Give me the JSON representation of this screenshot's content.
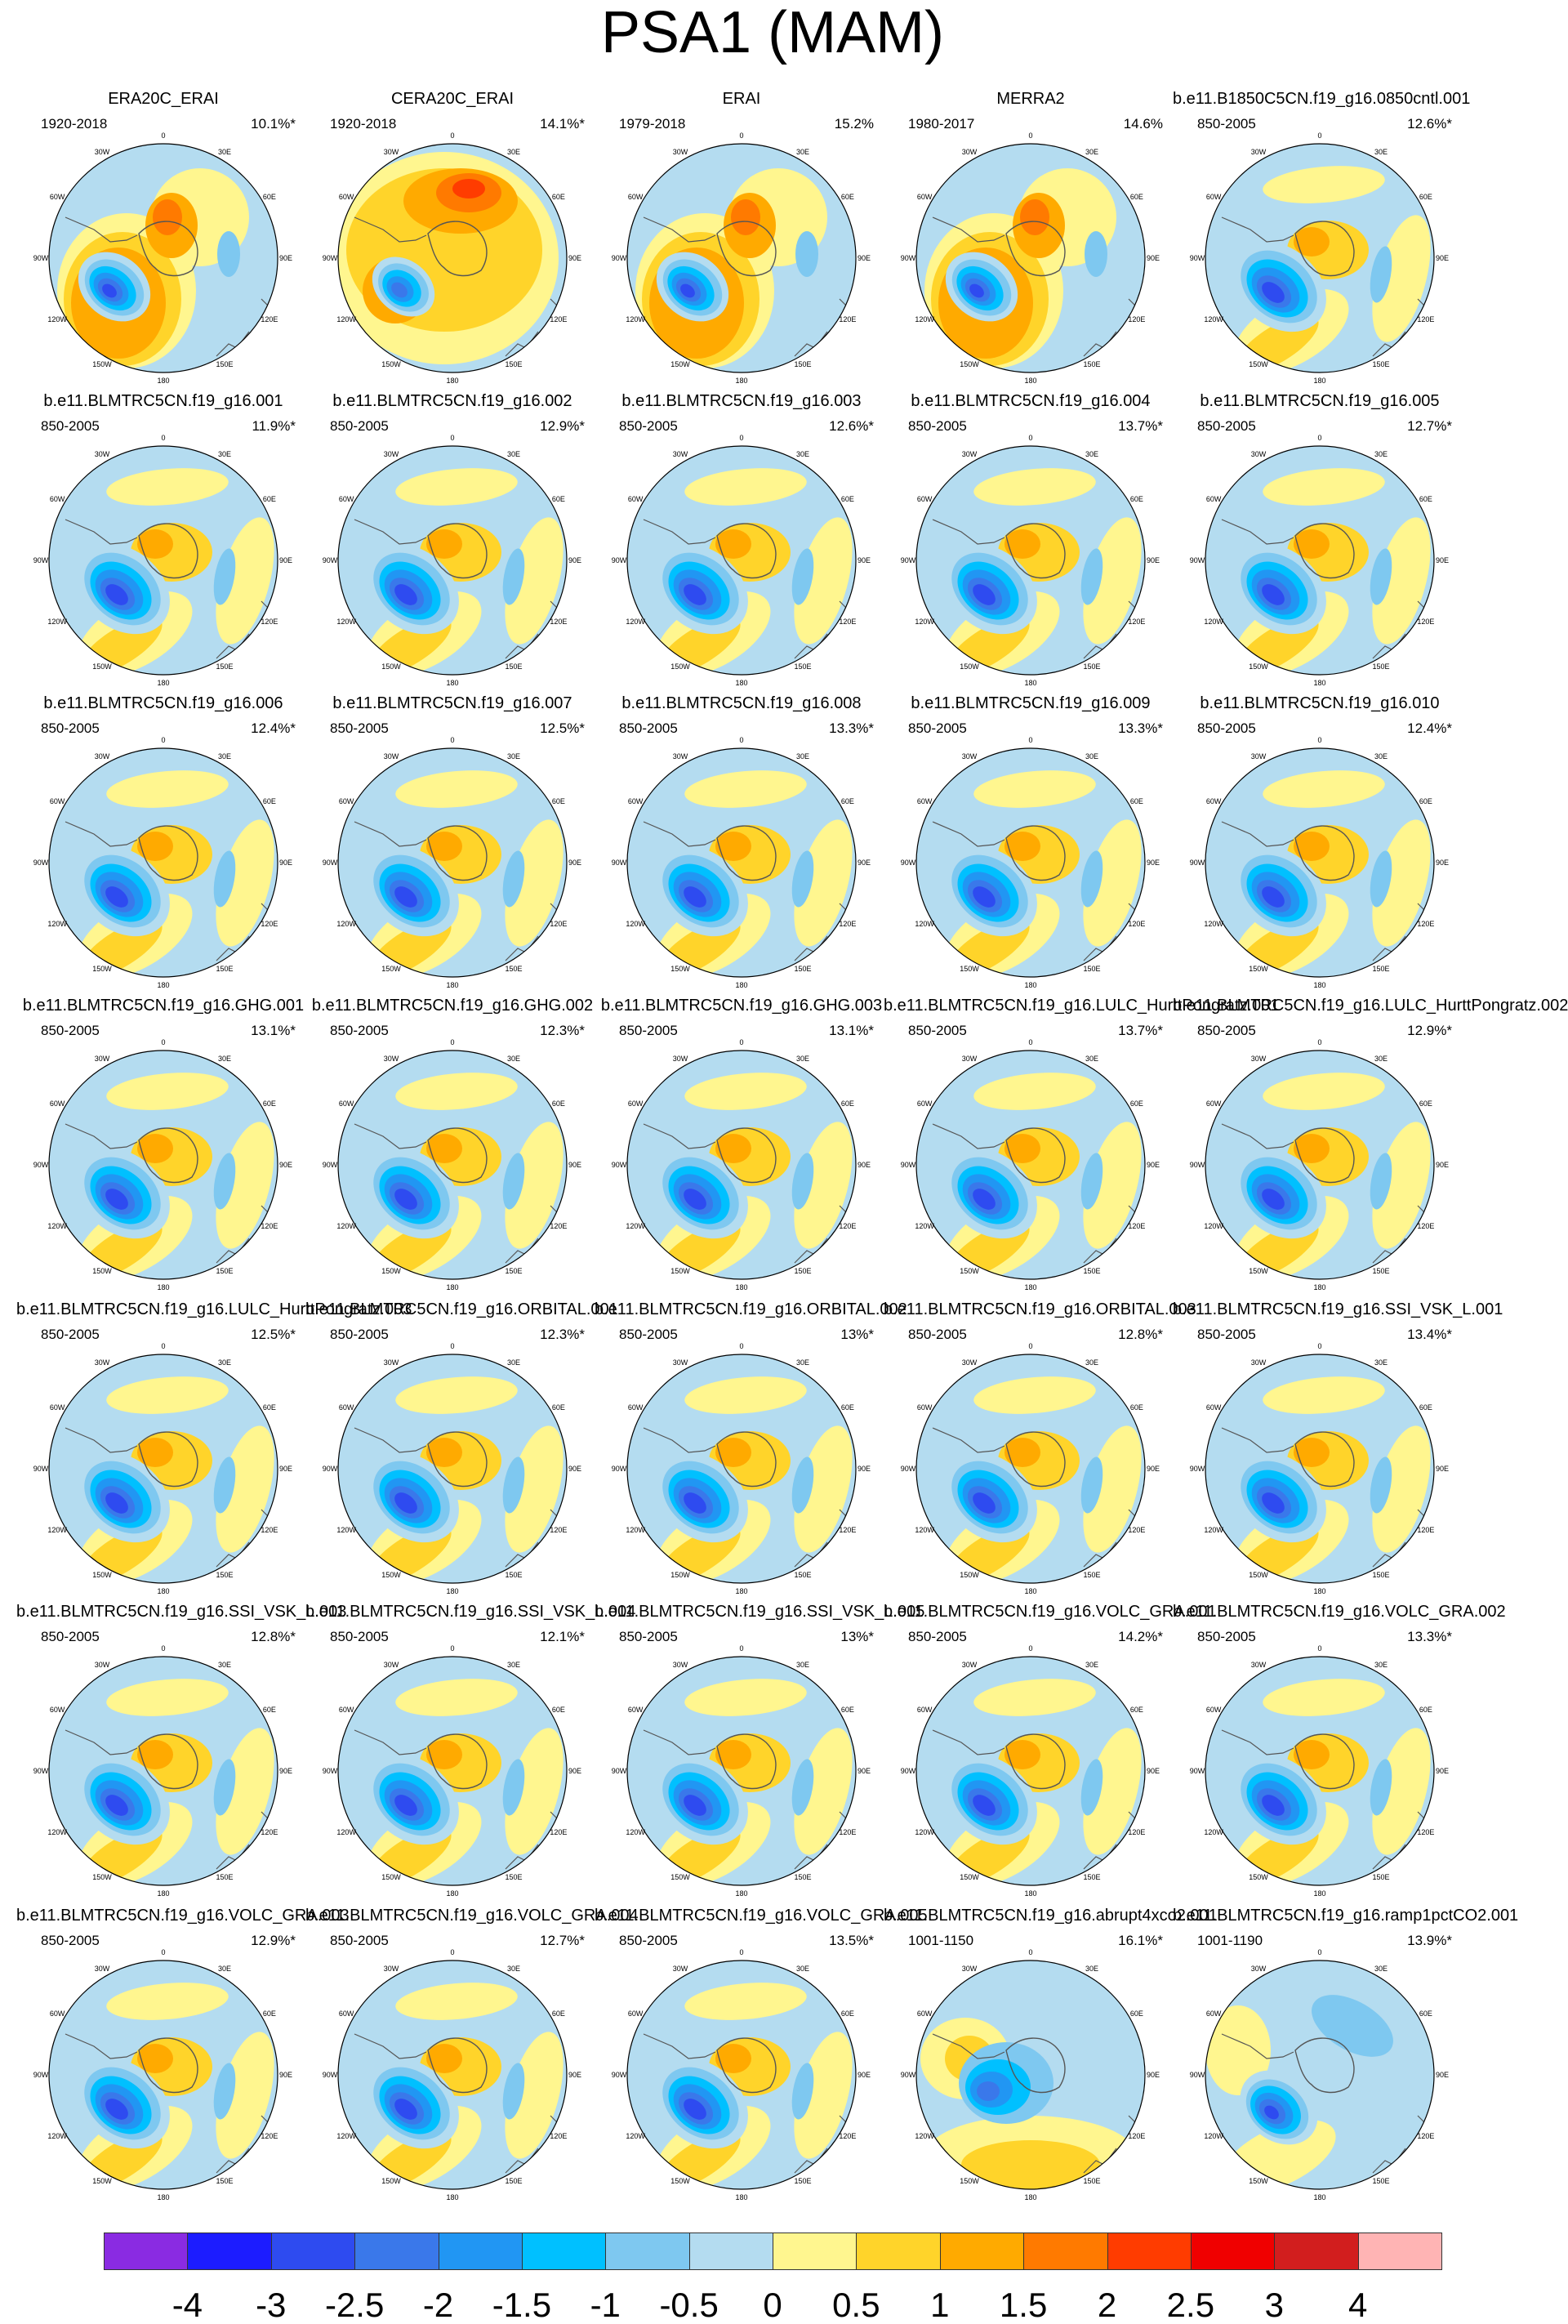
{
  "title": "PSA1 (MAM)",
  "lon_labels": [
    "0",
    "30E",
    "60E",
    "90E",
    "120E",
    "150E",
    "180",
    "150W",
    "120W",
    "90W",
    "60W",
    "30W"
  ],
  "panels": [
    {
      "title": "ERA20C_ERAI",
      "period": "1920-2018",
      "pct": "10.1%*",
      "style": "obs"
    },
    {
      "title": "CERA20C_ERAI",
      "period": "1920-2018",
      "pct": "14.1%*",
      "style": "cera"
    },
    {
      "title": "ERAI",
      "period": "1979-2018",
      "pct": "15.2%",
      "style": "obs"
    },
    {
      "title": "MERRA2",
      "period": "1980-2017",
      "pct": "14.6%",
      "style": "obs"
    },
    {
      "title": "b.e11.B1850C5CN.f19_g16.0850cntl.001",
      "period": "850-2005",
      "pct": "12.6%*",
      "style": "model"
    },
    {
      "title": "b.e11.BLMTRC5CN.f19_g16.001",
      "period": "850-2005",
      "pct": "11.9%*",
      "style": "model"
    },
    {
      "title": "b.e11.BLMTRC5CN.f19_g16.002",
      "period": "850-2005",
      "pct": "12.9%*",
      "style": "model"
    },
    {
      "title": "b.e11.BLMTRC5CN.f19_g16.003",
      "period": "850-2005",
      "pct": "12.6%*",
      "style": "model"
    },
    {
      "title": "b.e11.BLMTRC5CN.f19_g16.004",
      "period": "850-2005",
      "pct": "13.7%*",
      "style": "model"
    },
    {
      "title": "b.e11.BLMTRC5CN.f19_g16.005",
      "period": "850-2005",
      "pct": "12.7%*",
      "style": "model"
    },
    {
      "title": "b.e11.BLMTRC5CN.f19_g16.006",
      "period": "850-2005",
      "pct": "12.4%*",
      "style": "model"
    },
    {
      "title": "b.e11.BLMTRC5CN.f19_g16.007",
      "period": "850-2005",
      "pct": "12.5%*",
      "style": "model"
    },
    {
      "title": "b.e11.BLMTRC5CN.f19_g16.008",
      "period": "850-2005",
      "pct": "13.3%*",
      "style": "model"
    },
    {
      "title": "b.e11.BLMTRC5CN.f19_g16.009",
      "period": "850-2005",
      "pct": "13.3%*",
      "style": "model"
    },
    {
      "title": "b.e11.BLMTRC5CN.f19_g16.010",
      "period": "850-2005",
      "pct": "12.4%*",
      "style": "model"
    },
    {
      "title": "b.e11.BLMTRC5CN.f19_g16.GHG.001",
      "period": "850-2005",
      "pct": "13.1%*",
      "style": "model"
    },
    {
      "title": "b.e11.BLMTRC5CN.f19_g16.GHG.002",
      "period": "850-2005",
      "pct": "12.3%*",
      "style": "model"
    },
    {
      "title": "b.e11.BLMTRC5CN.f19_g16.GHG.003",
      "period": "850-2005",
      "pct": "13.1%*",
      "style": "model"
    },
    {
      "title": "b.e11.BLMTRC5CN.f19_g16.LULC_HurttPongratz.001",
      "period": "850-2005",
      "pct": "13.7%*",
      "style": "model"
    },
    {
      "title": "b.e11.BLMTRC5CN.f19_g16.LULC_HurttPongratz.002",
      "period": "850-2005",
      "pct": "12.9%*",
      "style": "model"
    },
    {
      "title": "b.e11.BLMTRC5CN.f19_g16.LULC_HurttPongratz.003",
      "period": "850-2005",
      "pct": "12.5%*",
      "style": "model"
    },
    {
      "title": "b.e11.BLMTRC5CN.f19_g16.ORBITAL.001",
      "period": "850-2005",
      "pct": "12.3%*",
      "style": "model"
    },
    {
      "title": "b.e11.BLMTRC5CN.f19_g16.ORBITAL.002",
      "period": "850-2005",
      "pct": "13%*",
      "style": "model"
    },
    {
      "title": "b.e11.BLMTRC5CN.f19_g16.ORBITAL.003",
      "period": "850-2005",
      "pct": "12.8%*",
      "style": "model"
    },
    {
      "title": "b.e11.BLMTRC5CN.f19_g16.SSI_VSK_L.001",
      "period": "850-2005",
      "pct": "13.4%*",
      "style": "model"
    },
    {
      "title": "b.e11.BLMTRC5CN.f19_g16.SSI_VSK_L.003",
      "period": "850-2005",
      "pct": "12.8%*",
      "style": "model"
    },
    {
      "title": "b.e11.BLMTRC5CN.f19_g16.SSI_VSK_L.004",
      "period": "850-2005",
      "pct": "12.1%*",
      "style": "model"
    },
    {
      "title": "b.e11.BLMTRC5CN.f19_g16.SSI_VSK_L.005",
      "period": "850-2005",
      "pct": "13%*",
      "style": "model"
    },
    {
      "title": "b.e11.BLMTRC5CN.f19_g16.VOLC_GRA.001",
      "period": "850-2005",
      "pct": "14.2%*",
      "style": "model"
    },
    {
      "title": "b.e11.BLMTRC5CN.f19_g16.VOLC_GRA.002",
      "period": "850-2005",
      "pct": "13.3%*",
      "style": "model"
    },
    {
      "title": "b.e11.BLMTRC5CN.f19_g16.VOLC_GRA.003",
      "period": "850-2005",
      "pct": "12.9%*",
      "style": "model"
    },
    {
      "title": "b.e11.BLMTRC5CN.f19_g16.VOLC_GRA.004",
      "period": "850-2005",
      "pct": "12.7%*",
      "style": "model"
    },
    {
      "title": "b.e11.BLMTRC5CN.f19_g16.VOLC_GRA.005",
      "period": "850-2005",
      "pct": "13.5%*",
      "style": "model"
    },
    {
      "title": "b.e11.BLMTRC5CN.f19_g16.abrupt4xco2.001",
      "period": "1001-1150",
      "pct": "16.1%*",
      "style": "abrupt"
    },
    {
      "title": "b.e11.BLMTRC5CN.f19_g16.ramp1pctCO2.001",
      "period": "1001-1190",
      "pct": "13.9%*",
      "style": "ramp"
    }
  ],
  "colorbar": {
    "colors": [
      "#8a2be2",
      "#1c1cff",
      "#2e4bf0",
      "#3a78ea",
      "#2196f3",
      "#00c0ff",
      "#7ec8f0",
      "#b4dcf0",
      "#fff68f",
      "#ffd42a",
      "#ffaa00",
      "#ff7a00",
      "#ff3c00",
      "#f00000",
      "#d21e1e",
      "#ffb4b4"
    ],
    "labels": [
      "-4",
      "-3",
      "-2.5",
      "-2",
      "-1.5",
      "-1",
      "-0.5",
      "0",
      "0.5",
      "1",
      "1.5",
      "2",
      "2.5",
      "3",
      "4"
    ]
  }
}
